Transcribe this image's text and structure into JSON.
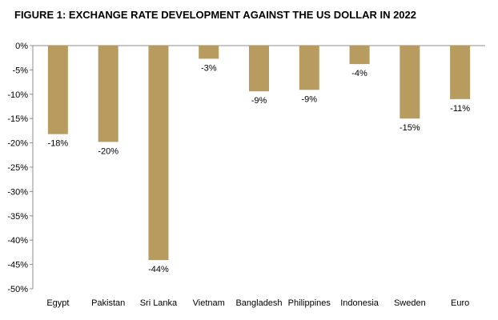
{
  "chart_data": {
    "type": "bar",
    "title": "FIGURE 1: EXCHANGE RATE DEVELOPMENT AGAINST THE US DOLLAR IN 2022",
    "xlabel": "",
    "ylabel": "",
    "categories": [
      "Egypt",
      "Pakistan",
      "Sri Lanka",
      "Vietnam",
      "Bangladesh",
      "Philippines",
      "Indonesia",
      "Sweden",
      "Euro"
    ],
    "values": [
      -18.2,
      -19.8,
      -44.1,
      -2.7,
      -9.4,
      -9.1,
      -3.8,
      -15.0,
      -11.0
    ],
    "data_labels": [
      "-18%",
      "-20%",
      "-44%",
      "-3%",
      "-9%",
      "-9%",
      "-4%",
      "-15%",
      "-11%"
    ],
    "ylim": [
      -50,
      0
    ],
    "yticks": [
      0,
      -5,
      -10,
      -15,
      -20,
      -25,
      -30,
      -35,
      -40,
      -45,
      -50
    ],
    "ytick_labels": [
      "0%",
      "-5%",
      "-10%",
      "-15%",
      "-20%",
      "-25%",
      "-30%",
      "-35%",
      "-40%",
      "-45%",
      "-50%"
    ],
    "grid": false,
    "legend": "none",
    "bar_color": "#b89b5e"
  }
}
